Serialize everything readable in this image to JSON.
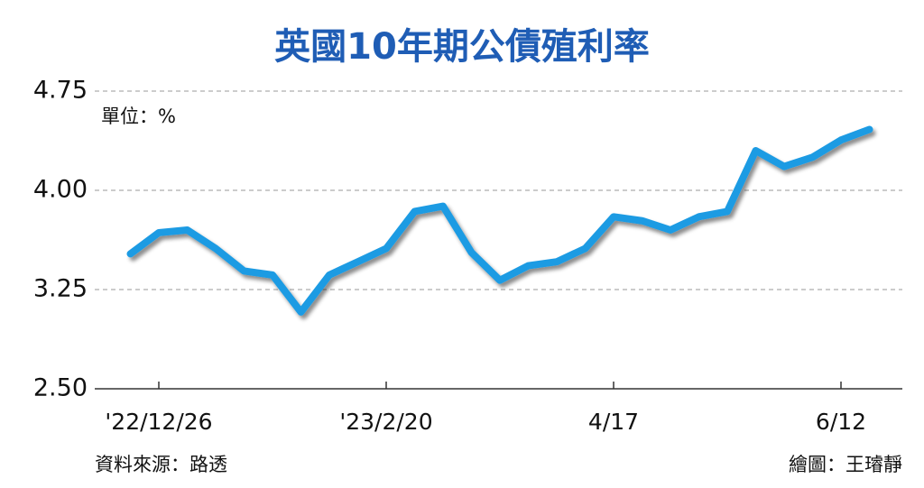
{
  "chart_data": {
    "type": "line",
    "title": "英國10年期公債殖利率",
    "unit_label": "單位：%",
    "source": "資料來源：路透",
    "credit": "繪圖：王璿靜",
    "categories": [
      null,
      "'22/12/26",
      null,
      null,
      null,
      null,
      null,
      null,
      null,
      "'23/2/20",
      null,
      null,
      null,
      null,
      null,
      null,
      null,
      "4/17",
      null,
      null,
      null,
      null,
      null,
      null,
      null,
      "6/12",
      null
    ],
    "series": [
      {
        "name": "英國10年期公債殖利率",
        "color": "#1e9be3",
        "values": [
          3.52,
          3.68,
          3.7,
          3.56,
          3.39,
          3.36,
          3.08,
          3.36,
          3.46,
          3.56,
          3.84,
          3.88,
          3.53,
          3.32,
          3.43,
          3.46,
          3.56,
          3.8,
          3.77,
          3.7,
          3.8,
          3.84,
          4.3,
          4.18,
          4.25,
          4.38,
          4.46
        ]
      }
    ],
    "ylim": [
      2.5,
      4.75
    ],
    "yticks": [
      {
        "value": 2.5,
        "label": "2.50"
      },
      {
        "value": 3.25,
        "label": "3.25"
      },
      {
        "value": 4,
        "label": "4.00"
      },
      4.75
    ],
    "grid": true
  }
}
